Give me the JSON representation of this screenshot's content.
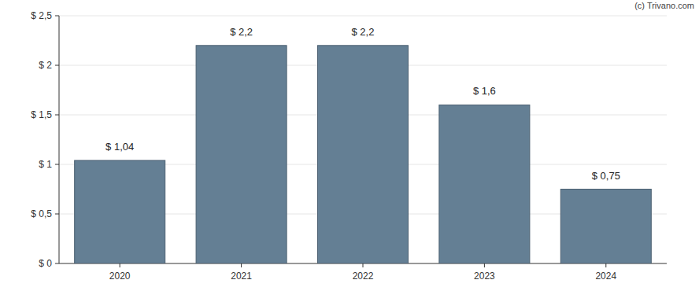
{
  "chart_data": {
    "type": "bar",
    "categories": [
      "2020",
      "2021",
      "2022",
      "2023",
      "2024"
    ],
    "values": [
      1.04,
      2.2,
      2.2,
      1.6,
      0.75
    ],
    "value_labels": [
      "$ 1,04",
      "$ 2,2",
      "$ 2,2",
      "$ 1,6",
      "$ 0,75"
    ],
    "data_labels": true,
    "color": "#647f94",
    "ylim": [
      0,
      2.5
    ],
    "yticks": [
      {
        "value": 0,
        "label": "$ 0"
      },
      {
        "value": 0.5,
        "label": "$ 0,5"
      },
      {
        "value": 1,
        "label": "$ 1"
      },
      {
        "value": 1.5,
        "label": "$ 1,5"
      },
      {
        "value": 2,
        "label": "$ 2"
      },
      {
        "value": 2.5,
        "label": "$ 2,5"
      }
    ],
    "grid": true,
    "annotations": [
      "(c) Trivano.com"
    ]
  }
}
